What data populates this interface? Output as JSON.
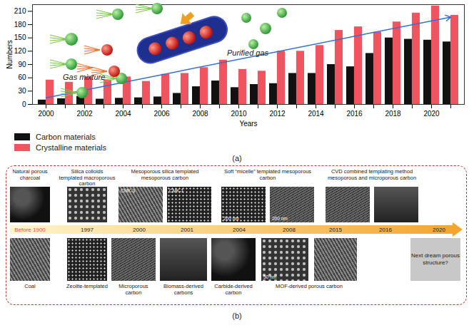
{
  "chart_data": {
    "type": "bar",
    "label": "(a)",
    "x_label": "Years",
    "y_label": "Numbers",
    "categories": [
      2000,
      2001,
      2002,
      2003,
      2004,
      2005,
      2006,
      2007,
      2008,
      2009,
      2010,
      2011,
      2012,
      2013,
      2014,
      2015,
      2016,
      2017,
      2018,
      2019,
      2020,
      2021
    ],
    "xticks": [
      2000,
      2002,
      2004,
      2006,
      2008,
      2010,
      2012,
      2014,
      2016,
      2018,
      2020
    ],
    "ylim": [
      0,
      225
    ],
    "yticks": [
      0,
      30,
      60,
      90,
      120,
      150,
      180,
      210
    ],
    "legend": "bottom",
    "series": [
      {
        "name": "Carbon materials",
        "color": "#111111",
        "values": [
          10,
          13,
          18,
          12,
          14,
          15,
          17,
          25,
          40,
          53,
          38,
          45,
          47,
          70,
          70,
          90,
          85,
          115,
          150,
          147,
          145,
          141
        ]
      },
      {
        "name": "Crystalline materials",
        "color": "#f0555f",
        "values": [
          55,
          50,
          62,
          55,
          62,
          52,
          68,
          70,
          83,
          100,
          79,
          75,
          120,
          120,
          133,
          167,
          175,
          163,
          186,
          206,
          222,
          201
        ]
      }
    ],
    "trend": {
      "x": [
        2000,
        2021
      ],
      "y": [
        15,
        197
      ],
      "color": "#2f6fd6"
    }
  },
  "inset": {
    "left_label": "Gas mixture",
    "right_label": "Purified gas"
  },
  "panel_b": {
    "label": "(b)",
    "top": [
      {
        "label": "Natural porous charcoal",
        "image_texts": [
          []
        ]
      },
      {
        "label": "Silica colloids templated macroporous carbon",
        "image_texts": [
          []
        ]
      },
      {
        "label": "Mesoporous silica templated mesoporous carbon",
        "image_texts": [
          [
            "CMK-3"
          ],
          [
            "CMK-1"
          ]
        ]
      },
      {
        "label": "Soft “micelle” templated mesoporous carbon",
        "image_texts": [
          [
            "200 nm"
          ],
          [
            "200 nm"
          ]
        ]
      },
      {
        "label": "CVD combined templating method mesoporous and microporous carbon",
        "image_texts": [
          [],
          []
        ]
      }
    ],
    "timeline": [
      "Before 1900",
      "1997",
      "2000",
      "2001",
      "2004",
      "2008",
      "2015",
      "2016",
      "2020"
    ],
    "bottom": [
      {
        "label": "Coal",
        "image_texts": [
          []
        ]
      },
      {
        "label": "Zeolite-templated",
        "image_texts": [
          []
        ]
      },
      {
        "label": "Microporous carbon",
        "image_texts": [
          []
        ]
      },
      {
        "label": "Biomass-derived carbons",
        "image_texts": [
          []
        ]
      },
      {
        "label": "Carbide-derived carbon",
        "image_texts": [
          []
        ]
      },
      {
        "label": "MOF-derived porous carbon",
        "image_texts": [
          [
            "50 nm"
          ],
          []
        ]
      },
      {
        "label": "Next dream porous structure?",
        "image_texts": []
      }
    ]
  }
}
